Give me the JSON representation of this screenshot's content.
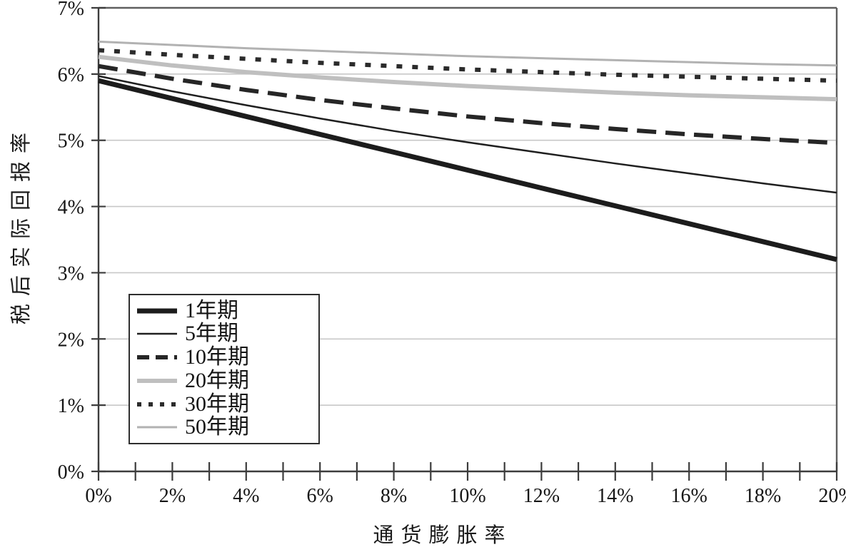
{
  "chart_data": {
    "type": "line",
    "title": "",
    "xlabel": "通货膨胀率",
    "ylabel": "税后实际回报率",
    "xlim": [
      0,
      20
    ],
    "ylim": [
      0,
      7
    ],
    "grid": "horizontal-light",
    "legend_position": "lower-left",
    "x_tick_labels": [
      "0%",
      "2%",
      "4%",
      "6%",
      "8%",
      "10%",
      "12%",
      "14%",
      "16%",
      "18%",
      "20%"
    ],
    "x_minor_tick_step": 1,
    "y_tick_labels": [
      "0%",
      "1%",
      "2%",
      "3%",
      "4%",
      "5%",
      "6%",
      "7%"
    ],
    "x": [
      0,
      2,
      4,
      6,
      8,
      10,
      12,
      14,
      16,
      18,
      20
    ],
    "series": [
      {
        "name": "50年期",
        "values": [
          6.49,
          6.44,
          6.39,
          6.35,
          6.31,
          6.27,
          6.24,
          6.21,
          6.18,
          6.15,
          6.13
        ],
        "style": {
          "color": "#b2b2b2",
          "width": 3,
          "dash": "",
          "legend_dash": ""
        }
      },
      {
        "name": "20年期",
        "values": [
          6.26,
          6.13,
          6.03,
          5.95,
          5.88,
          5.82,
          5.77,
          5.72,
          5.68,
          5.65,
          5.62
        ],
        "style": {
          "color": "#bfbfbf",
          "width": 6,
          "dash": "",
          "legend_dash": ""
        }
      },
      {
        "name": "30年期",
        "values": [
          6.36,
          6.29,
          6.23,
          6.17,
          6.12,
          6.07,
          6.03,
          5.99,
          5.96,
          5.93,
          5.9
        ],
        "style": {
          "color": "#2b2b2b",
          "width": 6,
          "dash": "8 14",
          "legend_dash": "6 10"
        }
      },
      {
        "name": "10年期",
        "values": [
          6.12,
          5.93,
          5.76,
          5.61,
          5.48,
          5.36,
          5.26,
          5.17,
          5.09,
          5.02,
          4.96
        ],
        "style": {
          "color": "#262626",
          "width": 6,
          "dash": "27 13",
          "legend_dash": "17 9"
        }
      },
      {
        "name": "5年期",
        "values": [
          5.97,
          5.74,
          5.53,
          5.33,
          5.14,
          4.97,
          4.81,
          4.65,
          4.5,
          4.35,
          4.21
        ],
        "style": {
          "color": "#1f1f1f",
          "width": 2.5,
          "dash": "",
          "legend_dash": ""
        }
      },
      {
        "name": "1年期",
        "values": [
          5.9,
          5.63,
          5.36,
          5.09,
          4.82,
          4.55,
          4.28,
          4.01,
          3.74,
          3.47,
          3.2
        ],
        "style": {
          "color": "#1c1c1c",
          "width": 7,
          "dash": "",
          "legend_dash": ""
        }
      }
    ],
    "legend_order": [
      "1年期",
      "5年期",
      "10年期",
      "20年期",
      "30年期",
      "50年期"
    ],
    "colors": {
      "axis": "#3c3c3c",
      "border": "#5f5f5f",
      "gridline": "#c8c8c8",
      "background": "#ffffff",
      "text": "#161616"
    }
  }
}
